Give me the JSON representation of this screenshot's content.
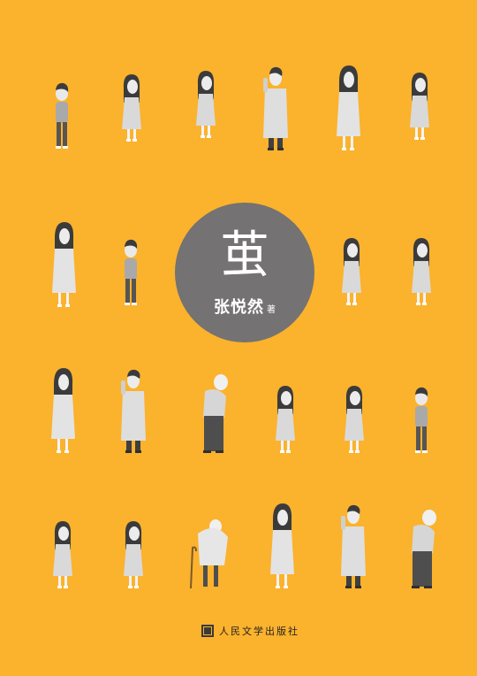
{
  "book": {
    "title": "茧",
    "author": "张悦然",
    "role": "著",
    "publisher": "人民文学出版社"
  },
  "colors": {
    "background": "#fbb22d",
    "disc": "#747272",
    "figure_light": "#eeeeee",
    "figure_dark": "#555555",
    "hair": "#3b3b3b"
  },
  "figures": [
    "boy",
    "girl",
    "girl",
    "man-in-coat",
    "woman",
    "girl",
    "woman",
    "boy",
    "girl",
    "girl",
    "woman",
    "man-in-coat",
    "old-man",
    "girl",
    "girl",
    "boy",
    "girl",
    "girl",
    "old-woman-with-cane",
    "woman",
    "man-in-coat",
    "old-man"
  ]
}
